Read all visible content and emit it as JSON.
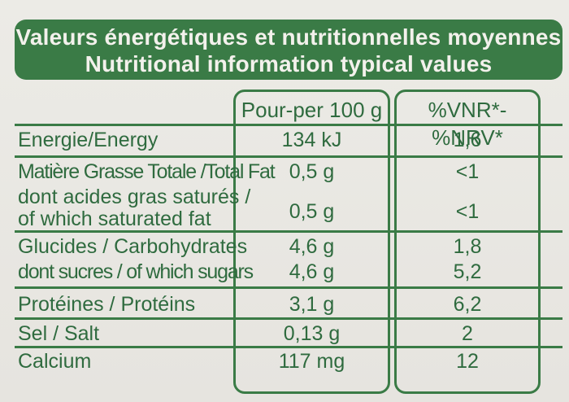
{
  "header": {
    "line1": "Valeurs énergétiques et nutritionnelles moyennes",
    "line2": "Nutritional information typical values"
  },
  "columns": {
    "per": "Pour-per 100 g",
    "vnr": "%VNR*-%NRV*"
  },
  "rows": [
    {
      "name": "Energie/Energy",
      "per": "134 kJ",
      "vnr": "1,6"
    },
    {
      "name": "Matière Grasse Totale /Total Fat",
      "per": "0,5 g",
      "vnr": "<1"
    },
    {
      "name_line1": "dont acides gras saturés /",
      "name_line2": "of which saturated fat",
      "per": "0,5 g",
      "vnr": "<1"
    },
    {
      "name": "Glucides / Carbohydrates",
      "per": "4,6 g",
      "vnr": "1,8"
    },
    {
      "name": "dont sucres / of which sugars",
      "per": "4,6 g",
      "vnr": "5,2"
    },
    {
      "name": "Protéines / Protéins",
      "per": "3,1 g",
      "vnr": "6,2"
    },
    {
      "name": "Sel / Salt",
      "per": "0,13 g",
      "vnr": "2"
    },
    {
      "name": "Calcium",
      "per": "117 mg",
      "vnr": "12"
    }
  ],
  "colors": {
    "green": "#3a7b46",
    "text": "#2f6b3f",
    "background": "#e9e7e2"
  }
}
